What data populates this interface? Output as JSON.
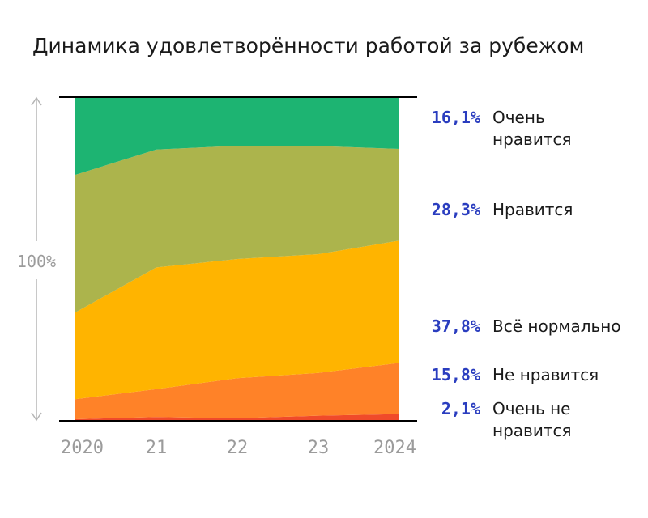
{
  "title": "Динамика удовлетворённости работой за рубежом",
  "chart_data": {
    "type": "area",
    "stacked": true,
    "normalized": true,
    "total_label": "100%",
    "categories": [
      "2020",
      "21",
      "22",
      "23",
      "2024"
    ],
    "ylim": [
      0,
      100
    ],
    "grid": false,
    "legend_placement": "right",
    "series": [
      {
        "name": "Очень не нравится",
        "name_lines": [
          "Очень не",
          "нравится"
        ],
        "value_label": "2,1%",
        "color": "#f04a2a",
        "values": [
          0.5,
          1.2,
          0.8,
          1.6,
          2.1
        ]
      },
      {
        "name": "Не нравится",
        "name_lines": [
          "Не нравится"
        ],
        "value_label": "15,8%",
        "color": "#ff8228",
        "values": [
          6.2,
          8.6,
          12.4,
          13.2,
          15.8
        ]
      },
      {
        "name": "Всё нормально",
        "name_lines": [
          "Всё нормально"
        ],
        "value_label": "37,8%",
        "color": "#ffb400",
        "values": [
          26.8,
          37.6,
          36.8,
          36.7,
          37.8
        ]
      },
      {
        "name": "Нравится",
        "name_lines": [
          "Нравится"
        ],
        "value_label": "28,3%",
        "color": "#acb44c",
        "values": [
          42.5,
          36.4,
          35.0,
          33.4,
          28.3
        ]
      },
      {
        "name": "Очень нравится",
        "name_lines": [
          "Очень",
          "нравится"
        ],
        "value_label": "16,1%",
        "color": "#1db472",
        "values": [
          24.0,
          16.2,
          15.0,
          15.1,
          16.1
        ]
      }
    ]
  }
}
